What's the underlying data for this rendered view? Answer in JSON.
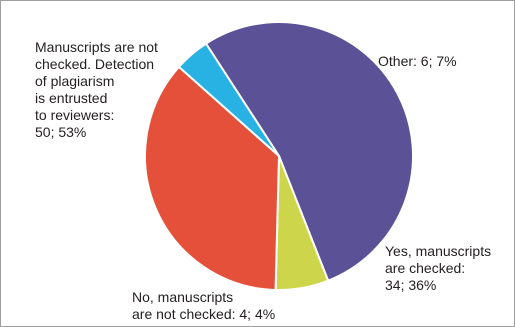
{
  "chart_data": {
    "type": "pie",
    "title": "",
    "start_angle_deg": 327,
    "direction": "clockwise",
    "legend": "none",
    "slices": [
      {
        "label": "Manuscripts are not\nchecked. Detection\nof plagiarism\nis entrusted\nto reviewers:\n50; 53%",
        "count": 50,
        "percent": 53,
        "color": "#5b5196"
      },
      {
        "label": "Other: 6; 7%",
        "count": 6,
        "percent": 7,
        "color": "#cdd64a"
      },
      {
        "label": "Yes, manuscripts\nare checked:\n34; 36%",
        "count": 34,
        "percent": 36,
        "color": "#e5503a"
      },
      {
        "label": "No, manuscripts\nare not checked: 4; 4%",
        "count": 4,
        "percent": 4,
        "color": "#27b2e3"
      }
    ]
  }
}
